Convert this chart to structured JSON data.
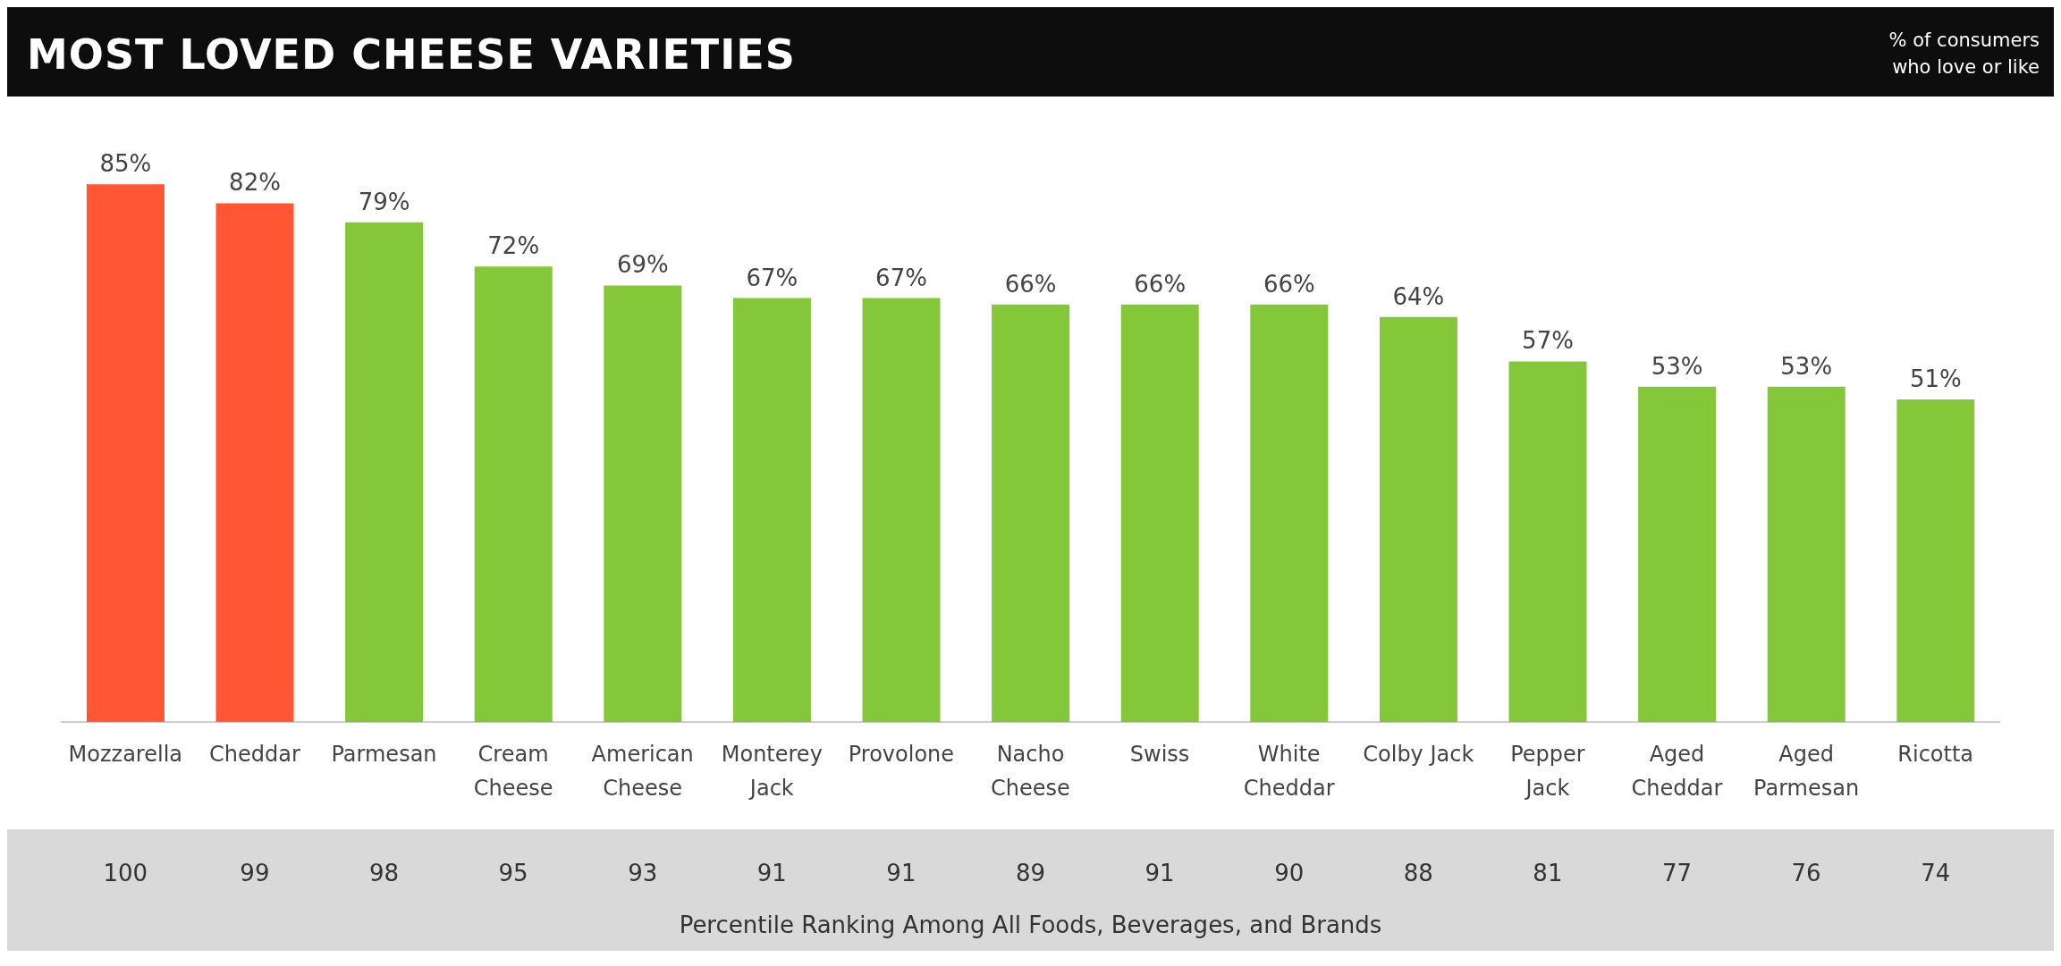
{
  "chart_data": [
    {
      "type": "bar",
      "title": "MOST LOVED CHEESE VARIETIES",
      "subtitle": "% of consumers who love or like",
      "categories": [
        "Mozzarella",
        "Cheddar",
        "Parmesan",
        "Cream Cheese",
        "American Cheese",
        "Monterey Jack",
        "Provolone",
        "Nacho Cheese",
        "Swiss",
        "White Cheddar",
        "Colby Jack",
        "Pepper Jack",
        "Aged Cheddar",
        "Aged Parmesan",
        "Ricotta"
      ],
      "values": [
        85,
        82,
        79,
        72,
        69,
        67,
        67,
        66,
        66,
        66,
        64,
        57,
        53,
        53,
        51
      ],
      "value_labels": [
        "85%",
        "82%",
        "79%",
        "72%",
        "69%",
        "67%",
        "67%",
        "66%",
        "66%",
        "66%",
        "64%",
        "57%",
        "53%",
        "53%",
        "51%"
      ],
      "colors": [
        "#ff5733",
        "#ff5733",
        "#84c83a",
        "#84c83a",
        "#84c83a",
        "#84c83a",
        "#84c83a",
        "#84c83a",
        "#84c83a",
        "#84c83a",
        "#84c83a",
        "#84c83a",
        "#84c83a",
        "#84c83a",
        "#84c83a"
      ]
    },
    {
      "type": "other",
      "xlabel": "Percentile Ranking Among All Foods, Beverages, and Brands",
      "categories": [
        null,
        null,
        null,
        null,
        null,
        null,
        null,
        null,
        null,
        null,
        null,
        null,
        null,
        null,
        null
      ],
      "values": [
        100,
        99,
        98,
        95,
        93,
        91,
        91,
        89,
        91,
        90,
        88,
        81,
        77,
        76,
        74
      ],
      "data_labels": true
    }
  ]
}
